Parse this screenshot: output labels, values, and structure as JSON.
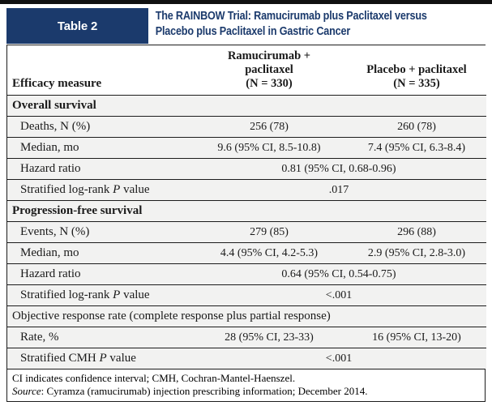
{
  "title_block": {
    "table_label": "Table 2",
    "title": "The RAINBOW Trial: Ramucirumab plus Paclitaxel versus Placebo plus Paclitaxel in Gastric Cancer"
  },
  "colors": {
    "navy_accent": "#1b3a6c",
    "row_background": "#f2f2f1",
    "border": "#1c1c1c",
    "top_rule": "#101010"
  },
  "table": {
    "header": {
      "col1": "Efficacy measure",
      "col2_lines": [
        "Ramucirumab +",
        "paclitaxel",
        "(N = 330)"
      ],
      "col3_lines": [
        "Placebo + paclitaxel",
        "(N = 335)"
      ]
    },
    "rows": [
      {
        "type": "section",
        "bold": true,
        "label_parts": [
          "Overall survival"
        ]
      },
      {
        "type": "data",
        "label_parts": [
          "Deaths, N (%)"
        ],
        "col2": "256 (78)",
        "col3": "260 (78)"
      },
      {
        "type": "data",
        "label_parts": [
          "Median, mo"
        ],
        "col2": "9.6 (95% CI, 8.5-10.8)",
        "col3": "7.4 (95% CI, 6.3-8.4)"
      },
      {
        "type": "span",
        "label_parts": [
          "Hazard ratio"
        ],
        "value": "0.81 (95% CI, 0.68-0.96)"
      },
      {
        "type": "span",
        "label_parts": [
          "Stratified log-rank ",
          {
            "i": "P"
          },
          " value"
        ],
        "value": ".017"
      },
      {
        "type": "section",
        "bold": true,
        "label_parts": [
          "Progression-free survival"
        ]
      },
      {
        "type": "data",
        "label_parts": [
          "Events, N (%)"
        ],
        "col2": "279 (85)",
        "col3": "296 (88)"
      },
      {
        "type": "data",
        "label_parts": [
          "Median, mo"
        ],
        "col2": "4.4 (95% CI, 4.2-5.3)",
        "col3": "2.9 (95% CI, 2.8-3.0)"
      },
      {
        "type": "span",
        "label_parts": [
          "Hazard ratio"
        ],
        "value": "0.64 (95% CI, 0.54-0.75)"
      },
      {
        "type": "span",
        "label_parts": [
          "Stratified log-rank ",
          {
            "i": "P"
          },
          " value"
        ],
        "value": "<.001"
      },
      {
        "type": "section",
        "bold": false,
        "label_parts": [
          "Objective response rate (complete response plus partial response)"
        ]
      },
      {
        "type": "data",
        "label_parts": [
          "Rate, %"
        ],
        "col2": "28 (95% CI, 23-33)",
        "col3": "16 (95% CI, 13-20)"
      },
      {
        "type": "span",
        "label_parts": [
          "Stratified CMH ",
          {
            "i": "P"
          },
          " value"
        ],
        "value": "<.001"
      }
    ],
    "footnotes": [
      [
        "CI indicates confidence interval; CMH, Cochran-Mantel-Haenszel."
      ],
      [
        {
          "i": "Source"
        },
        ": Cyramza (ramucirumab) injection prescribing information; December 2014."
      ]
    ]
  }
}
